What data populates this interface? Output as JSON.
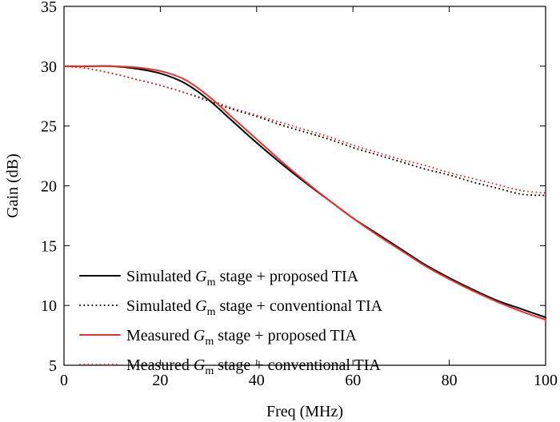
{
  "chart_data": {
    "type": "line",
    "title": "",
    "xlabel": "Freq (MHz)",
    "ylabel": "Gain (dB)",
    "xlim": [
      0,
      100
    ],
    "ylim": [
      5,
      35
    ],
    "xticks": [
      0,
      20,
      40,
      60,
      80,
      100
    ],
    "yticks": [
      5,
      10,
      15,
      20,
      25,
      30,
      35
    ],
    "xtick_labels": [
      "0",
      "20",
      "40",
      "60",
      "80",
      "100"
    ],
    "ytick_labels": [
      "5",
      "10",
      "15",
      "20",
      "25",
      "30",
      "35"
    ],
    "grid": false,
    "legend_position": "bottom-left",
    "series": [
      {
        "name": "Simulated Gm stage + proposed TIA",
        "legend": {
          "prefix": "Simulated ",
          "symbol": "G",
          "subscript": "m",
          "suffix": " stage + proposed TIA"
        },
        "color": "#000000",
        "dash": "solid",
        "x": [
          0,
          5,
          10,
          15,
          20,
          25,
          30,
          35,
          40,
          45,
          50,
          55,
          60,
          65,
          70,
          75,
          80,
          85,
          90,
          95,
          100
        ],
        "y": [
          30.0,
          30.0,
          30.0,
          29.8,
          29.4,
          28.6,
          27.2,
          25.4,
          23.6,
          21.9,
          20.3,
          18.8,
          17.3,
          16.0,
          14.7,
          13.4,
          12.3,
          11.3,
          10.4,
          9.7,
          9.0
        ]
      },
      {
        "name": "Simulated Gm stage + conventional TIA",
        "legend": {
          "prefix": "Simulated ",
          "symbol": "G",
          "subscript": "m",
          "suffix": " stage + conventional TIA"
        },
        "color": "#000000",
        "dash": "dotted",
        "x": [
          0,
          5,
          10,
          15,
          20,
          25,
          30,
          35,
          40,
          45,
          50,
          55,
          60,
          65,
          70,
          75,
          80,
          85,
          90,
          95,
          100
        ],
        "y": [
          30.0,
          29.8,
          29.4,
          28.9,
          28.4,
          27.8,
          27.1,
          26.4,
          25.8,
          25.1,
          24.5,
          23.9,
          23.2,
          22.6,
          22.0,
          21.4,
          20.9,
          20.3,
          19.8,
          19.3,
          19.2
        ]
      },
      {
        "name": "Measured Gm stage + proposed TIA",
        "legend": {
          "prefix": "Measured ",
          "symbol": "G",
          "subscript": "m",
          "suffix": " stage + proposed TIA"
        },
        "color": "#e8312b",
        "dash": "solid",
        "x": [
          0,
          5,
          10,
          15,
          20,
          25,
          30,
          35,
          40,
          45,
          50,
          55,
          60,
          65,
          70,
          75,
          80,
          85,
          90,
          95,
          100
        ],
        "y": [
          30.0,
          30.0,
          30.0,
          29.9,
          29.6,
          28.9,
          27.5,
          25.7,
          23.9,
          22.1,
          20.4,
          18.8,
          17.3,
          15.9,
          14.6,
          13.3,
          12.2,
          11.2,
          10.3,
          9.5,
          8.8
        ]
      },
      {
        "name": "Measured Gm stage + conventional TIA",
        "legend": {
          "prefix": "Measured ",
          "symbol": "G",
          "subscript": "m",
          "suffix": " stage + conventional TIA"
        },
        "color": "#e8312b",
        "dash": "dotted",
        "x": [
          0,
          5,
          10,
          15,
          20,
          25,
          30,
          35,
          40,
          45,
          50,
          55,
          60,
          65,
          70,
          75,
          80,
          85,
          90,
          95,
          100
        ],
        "y": [
          30.0,
          29.8,
          29.4,
          28.9,
          28.4,
          27.8,
          27.2,
          26.5,
          25.9,
          25.3,
          24.7,
          24.1,
          23.4,
          22.8,
          22.2,
          21.7,
          21.1,
          20.6,
          20.1,
          19.6,
          19.4
        ]
      }
    ]
  }
}
